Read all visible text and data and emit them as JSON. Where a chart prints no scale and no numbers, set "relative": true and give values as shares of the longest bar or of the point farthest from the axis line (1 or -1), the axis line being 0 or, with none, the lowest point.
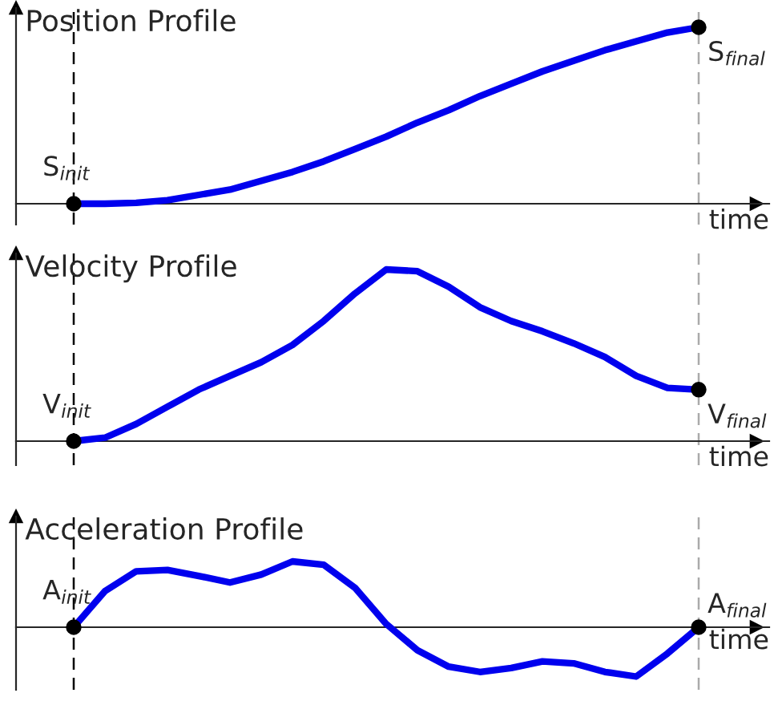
{
  "chart_data": [
    {
      "type": "line",
      "title": "Position Profile",
      "xlabel": "time",
      "relative": true,
      "legend": false,
      "line_style": "solid",
      "categories": [
        null,
        null,
        null,
        null,
        null,
        null,
        null,
        null,
        null,
        null,
        null,
        null,
        null,
        null,
        null,
        null,
        null,
        null,
        null,
        null,
        null
      ],
      "series": [
        {
          "color": "#0000ee",
          "values": [
            0,
            0,
            0.005,
            0.02,
            0.05,
            0.08,
            0.13,
            0.18,
            0.24,
            0.31,
            0.38,
            0.46,
            0.53,
            0.61,
            0.68,
            0.75,
            0.81,
            0.87,
            0.92,
            0.97,
            1.0
          ]
        }
      ],
      "annotations": [
        "S$_{init}$",
        "S$_{final}$"
      ]
    },
    {
      "type": "line",
      "title": "Velocity Profile",
      "xlabel": "time",
      "relative": true,
      "legend": false,
      "line_style": "solid",
      "categories": [
        null,
        null,
        null,
        null,
        null,
        null,
        null,
        null,
        null,
        null,
        null,
        null,
        null,
        null,
        null,
        null,
        null,
        null,
        null,
        null,
        null
      ],
      "series": [
        {
          "color": "#0000ee",
          "values": [
            0,
            0.02,
            0.1,
            0.2,
            0.3,
            0.38,
            0.46,
            0.56,
            0.7,
            0.86,
            1.0,
            0.99,
            0.9,
            0.78,
            0.7,
            0.64,
            0.57,
            0.49,
            0.38,
            0.31,
            0.3
          ]
        }
      ],
      "annotations": [
        "V$_{init}$",
        "V$_{final}$"
      ]
    },
    {
      "type": "line",
      "title": "Acceleration Profile",
      "xlabel": "time",
      "relative": true,
      "legend": false,
      "line_style": "solid",
      "categories": [
        null,
        null,
        null,
        null,
        null,
        null,
        null,
        null,
        null,
        null,
        null,
        null,
        null,
        null,
        null,
        null,
        null,
        null,
        null,
        null,
        null
      ],
      "series": [
        {
          "color": "#0000ee",
          "values": [
            0,
            0.55,
            0.85,
            0.87,
            0.78,
            0.68,
            0.8,
            1.0,
            0.95,
            0.6,
            0.05,
            -0.35,
            -0.6,
            -0.68,
            -0.62,
            -0.52,
            -0.55,
            -0.68,
            -0.75,
            -0.4,
            0
          ]
        }
      ],
      "annotations": [
        "A$_{init}$",
        "A$_{final}$"
      ]
    }
  ]
}
